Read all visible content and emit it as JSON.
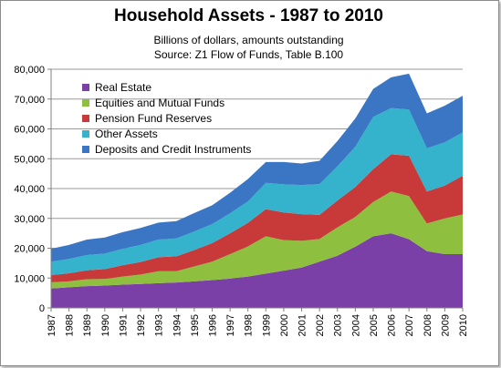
{
  "chart_data": {
    "type": "area",
    "stacked": true,
    "title": "Household Assets - 1987 to 2010",
    "subtitle_lines": [
      "Billions of dollars, amounts outstanding",
      "Source: Z1 Flow of Funds, Table B.100"
    ],
    "x": [
      "1987",
      "1988",
      "1989",
      "1990",
      "1991",
      "1992",
      "1993",
      "1994",
      "1995",
      "1996",
      "1997",
      "1998",
      "1999",
      "2000",
      "2001",
      "2002",
      "2003",
      "2004",
      "2005",
      "2006",
      "2007",
      "2008",
      "2009",
      "2010"
    ],
    "ylim": [
      0,
      80000
    ],
    "yticks": [
      0,
      10000,
      20000,
      30000,
      40000,
      50000,
      60000,
      70000,
      80000
    ],
    "ytick_labels": [
      "0",
      "10,000",
      "20,000",
      "30,000",
      "40,000",
      "50,000",
      "60,000",
      "70,000",
      "80,000"
    ],
    "grid": true,
    "legend_position": "top-left",
    "series": [
      {
        "name": "Real Estate",
        "color": "#7b3fa8",
        "values": [
          6500,
          6900,
          7300,
          7500,
          7800,
          8000,
          8300,
          8500,
          8900,
          9300,
          9800,
          10500,
          11500,
          12500,
          13500,
          15500,
          17500,
          20500,
          24000,
          25000,
          23000,
          19000,
          18000,
          18000
        ]
      },
      {
        "name": "Equities and Mutual Funds",
        "color": "#8fbf3f",
        "values": [
          2100,
          2000,
          2300,
          2200,
          2700,
          3200,
          4000,
          3800,
          5000,
          6200,
          8200,
          10100,
          12500,
          10200,
          9000,
          7600,
          9500,
          10000,
          11500,
          14000,
          14500,
          9300,
          12000,
          13300
        ]
      },
      {
        "name": "Pension Fund Reserves",
        "color": "#c83a3a",
        "values": [
          2400,
          2700,
          3000,
          3300,
          3800,
          4200,
          4700,
          5000,
          5500,
          6200,
          7000,
          7900,
          9100,
          9300,
          8900,
          8100,
          9000,
          10000,
          11000,
          12500,
          13500,
          10700,
          11000,
          13000
        ]
      },
      {
        "name": "Other Assets",
        "color": "#35b3cc",
        "values": [
          4500,
          4800,
          5100,
          5200,
          5500,
          5700,
          5900,
          6000,
          6200,
          6400,
          6700,
          7200,
          8800,
          9400,
          9800,
          10300,
          11500,
          13500,
          17500,
          15500,
          15500,
          14500,
          14500,
          14500
        ]
      },
      {
        "name": "Deposits and Credit Instruments",
        "color": "#3a76c4",
        "values": [
          4300,
          4700,
          5200,
          5400,
          5600,
          5700,
          5700,
          5800,
          6200,
          6300,
          6900,
          7500,
          7000,
          7500,
          7200,
          7800,
          8400,
          9500,
          9400,
          10300,
          12000,
          11700,
          12300,
          12300
        ]
      }
    ]
  }
}
